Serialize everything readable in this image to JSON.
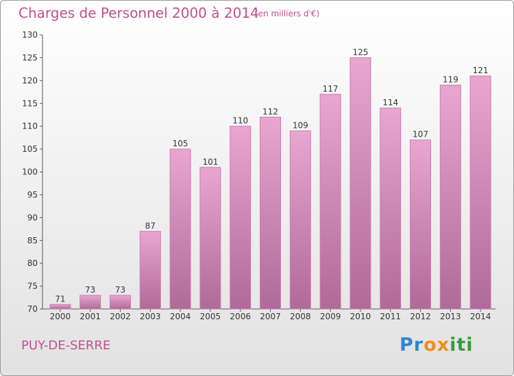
{
  "header": {
    "title": "Charges de Personnel 2000 à 2014",
    "subtitle": "(en milliers d'€)"
  },
  "footer": {
    "place": "PUY-DE-SERRE",
    "logo": "Proxiti"
  },
  "colors": {
    "accent": "#c0508c",
    "bar_top": "#e8a6d0",
    "bar_bottom": "#b06a98"
  },
  "chart_data": {
    "type": "bar",
    "categories": [
      "2000",
      "2001",
      "2002",
      "2003",
      "2004",
      "2005",
      "2006",
      "2007",
      "2008",
      "2009",
      "2010",
      "2011",
      "2012",
      "2013",
      "2014"
    ],
    "values": [
      71,
      73,
      73,
      87,
      105,
      101,
      110,
      112,
      109,
      117,
      125,
      114,
      107,
      119,
      121
    ],
    "title": "Charges de Personnel 2000 à 2014",
    "subtitle": "(en milliers d'€)",
    "xlabel": "",
    "ylabel": "",
    "ylim": [
      70,
      130
    ],
    "yticks": [
      70,
      75,
      80,
      85,
      90,
      95,
      100,
      105,
      110,
      115,
      120,
      125,
      130
    ],
    "grid": false,
    "legend": "none"
  }
}
